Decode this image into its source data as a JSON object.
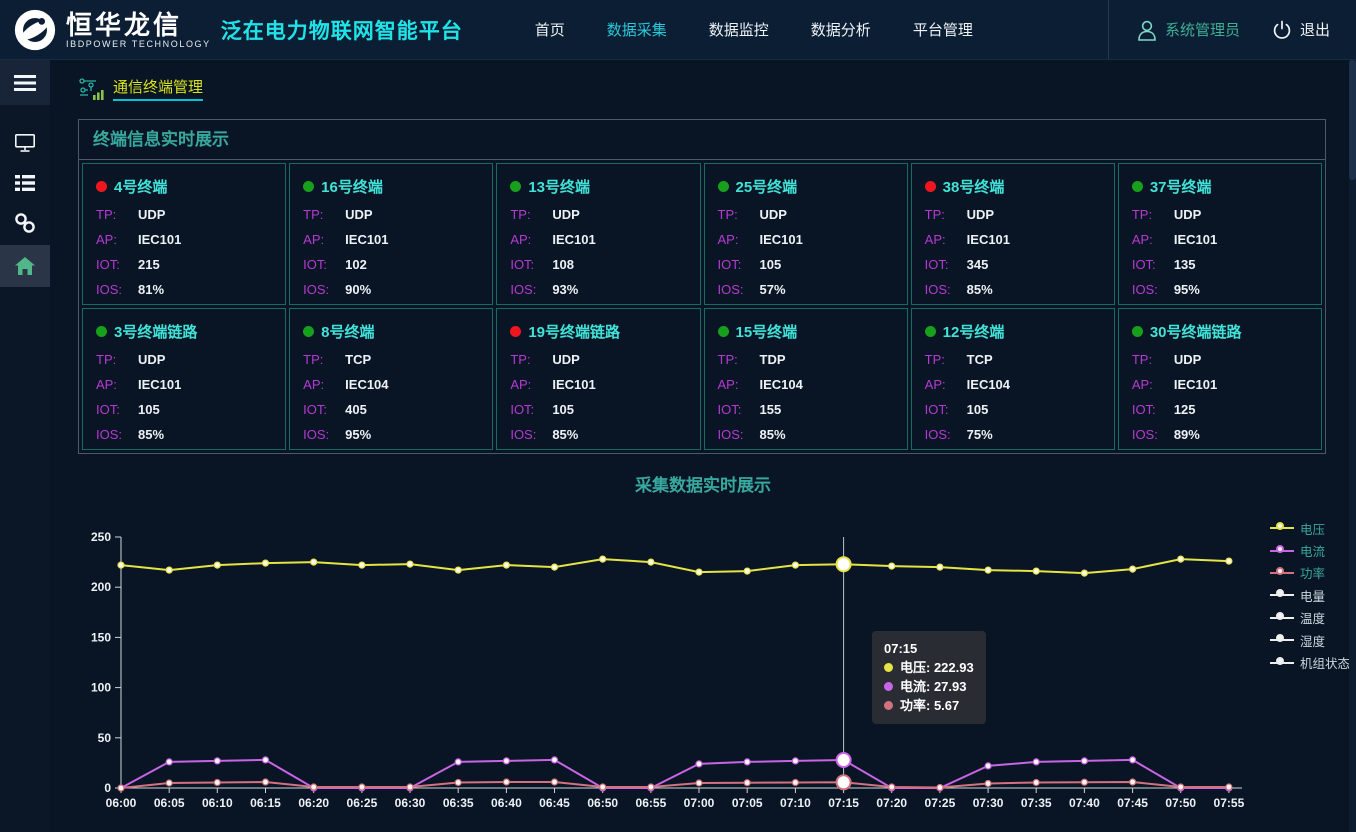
{
  "colors": {
    "accent_cyan": "#1fe3e8",
    "nav_active": "#29c9da",
    "teal_title": "#38a89e",
    "card_name_cyan": "#41e2d8",
    "label_purple": "#b63ad4",
    "breadcrumb_yellow": "#dbe31c",
    "dot_red": "#ef1620",
    "dot_green": "#17a01c",
    "home_icon_green": "#52b788"
  },
  "header": {
    "logo_title": "恒华龙信",
    "logo_subtitle": "IBDPOWER TECHNOLOGY",
    "platform_title": "泛在电力物联网智能平台",
    "nav": [
      {
        "label": "首页",
        "active": false
      },
      {
        "label": "数据采集",
        "active": true
      },
      {
        "label": "数据监控",
        "active": false
      },
      {
        "label": "数据分析",
        "active": false
      },
      {
        "label": "平台管理",
        "active": false
      }
    ],
    "user_name": "系统管理员",
    "logout_label": "退出"
  },
  "sidebar": {
    "items": [
      "menu",
      "monitor",
      "list",
      "link",
      "home"
    ],
    "active_item": "home"
  },
  "breadcrumb": {
    "label": "通信终端管理"
  },
  "terminals": {
    "panel_title": "终端信息实时展示",
    "field_labels": {
      "tp": "TP:",
      "ap": "AP:",
      "iot": "IOT:",
      "ios": "IOS:"
    },
    "cards": [
      {
        "name": "4号终端",
        "status": "red",
        "tp": "UDP",
        "ap": "IEC101",
        "iot": "215",
        "ios": "81%"
      },
      {
        "name": "16号终端",
        "status": "green",
        "tp": "UDP",
        "ap": "IEC101",
        "iot": "102",
        "ios": "90%"
      },
      {
        "name": "13号终端",
        "status": "green",
        "tp": "UDP",
        "ap": "IEC101",
        "iot": "108",
        "ios": "93%"
      },
      {
        "name": "25号终端",
        "status": "green",
        "tp": "UDP",
        "ap": "IEC101",
        "iot": "105",
        "ios": "57%"
      },
      {
        "name": "38号终端",
        "status": "red",
        "tp": "UDP",
        "ap": "IEC101",
        "iot": "345",
        "ios": "85%"
      },
      {
        "name": "37号终端",
        "status": "green",
        "tp": "UDP",
        "ap": "IEC101",
        "iot": "135",
        "ios": "95%"
      },
      {
        "name": "3号终端链路",
        "status": "green",
        "tp": "UDP",
        "ap": "IEC101",
        "iot": "105",
        "ios": "85%"
      },
      {
        "name": "8号终端",
        "status": "green",
        "tp": "TCP",
        "ap": "IEC104",
        "iot": "405",
        "ios": "95%"
      },
      {
        "name": "19号终端链路",
        "status": "red",
        "tp": "UDP",
        "ap": "IEC101",
        "iot": "105",
        "ios": "85%"
      },
      {
        "name": "15号终端",
        "status": "green",
        "tp": "TDP",
        "ap": "IEC104",
        "iot": "155",
        "ios": "85%"
      },
      {
        "name": "12号终端",
        "status": "green",
        "tp": "TCP",
        "ap": "IEC104",
        "iot": "105",
        "ios": "75%"
      },
      {
        "name": "30号终端链路",
        "status": "green",
        "tp": "UDP",
        "ap": "IEC101",
        "iot": "125",
        "ios": "89%"
      }
    ]
  },
  "chart_section": {
    "title": "采集数据实时展示"
  },
  "chart_data": {
    "type": "line",
    "title": "采集数据实时展示",
    "x": [
      "06:00",
      "06:05",
      "06:10",
      "06:15",
      "06:20",
      "06:25",
      "06:30",
      "06:35",
      "06:40",
      "06:45",
      "06:50",
      "06:55",
      "07:00",
      "07:05",
      "07:10",
      "07:15",
      "07:20",
      "07:25",
      "07:30",
      "07:35",
      "07:40",
      "07:45",
      "07:50",
      "07:55"
    ],
    "ylim": [
      0,
      250
    ],
    "yticks": [
      0,
      50,
      100,
      150,
      200,
      250
    ],
    "grid": false,
    "legend_position": "right",
    "series": [
      {
        "name": "电压",
        "color": "#e6e445",
        "active": true,
        "values": [
          222,
          217,
          222,
          224,
          225,
          222,
          223,
          217,
          222,
          220,
          228,
          225,
          215,
          216,
          222,
          222.93,
          221,
          220,
          217,
          216,
          214,
          218,
          228,
          226
        ]
      },
      {
        "name": "电流",
        "color": "#c964e6",
        "active": true,
        "values": [
          0,
          26,
          27,
          28,
          0,
          0,
          0,
          26,
          27,
          28,
          0,
          0,
          24,
          26,
          27,
          27.93,
          0,
          0,
          22,
          26,
          27,
          28,
          0,
          0
        ]
      },
      {
        "name": "功率",
        "color": "#d4717f",
        "active": true,
        "values": [
          0,
          5,
          5.5,
          6,
          1,
          1,
          1,
          5.5,
          6,
          6,
          1,
          1,
          5,
          5.3,
          5.5,
          5.67,
          1,
          0.5,
          4.5,
          5.5,
          5.8,
          6,
          1,
          1
        ]
      },
      {
        "name": "电量",
        "color": "#ededed",
        "active": false
      },
      {
        "name": "温度",
        "color": "#ededed",
        "active": false
      },
      {
        "name": "湿度",
        "color": "#ededed",
        "active": false
      },
      {
        "name": "机组状态",
        "color": "#ededed",
        "active": false
      }
    ],
    "highlight_index": 15,
    "tooltip": {
      "title": "07:15",
      "rows": [
        {
          "label": "电压",
          "value": "222.93",
          "color": "#e6e445"
        },
        {
          "label": "电流",
          "value": "27.93",
          "color": "#c964e6"
        },
        {
          "label": "功率",
          "value": "5.67",
          "color": "#d4717f"
        }
      ]
    }
  }
}
